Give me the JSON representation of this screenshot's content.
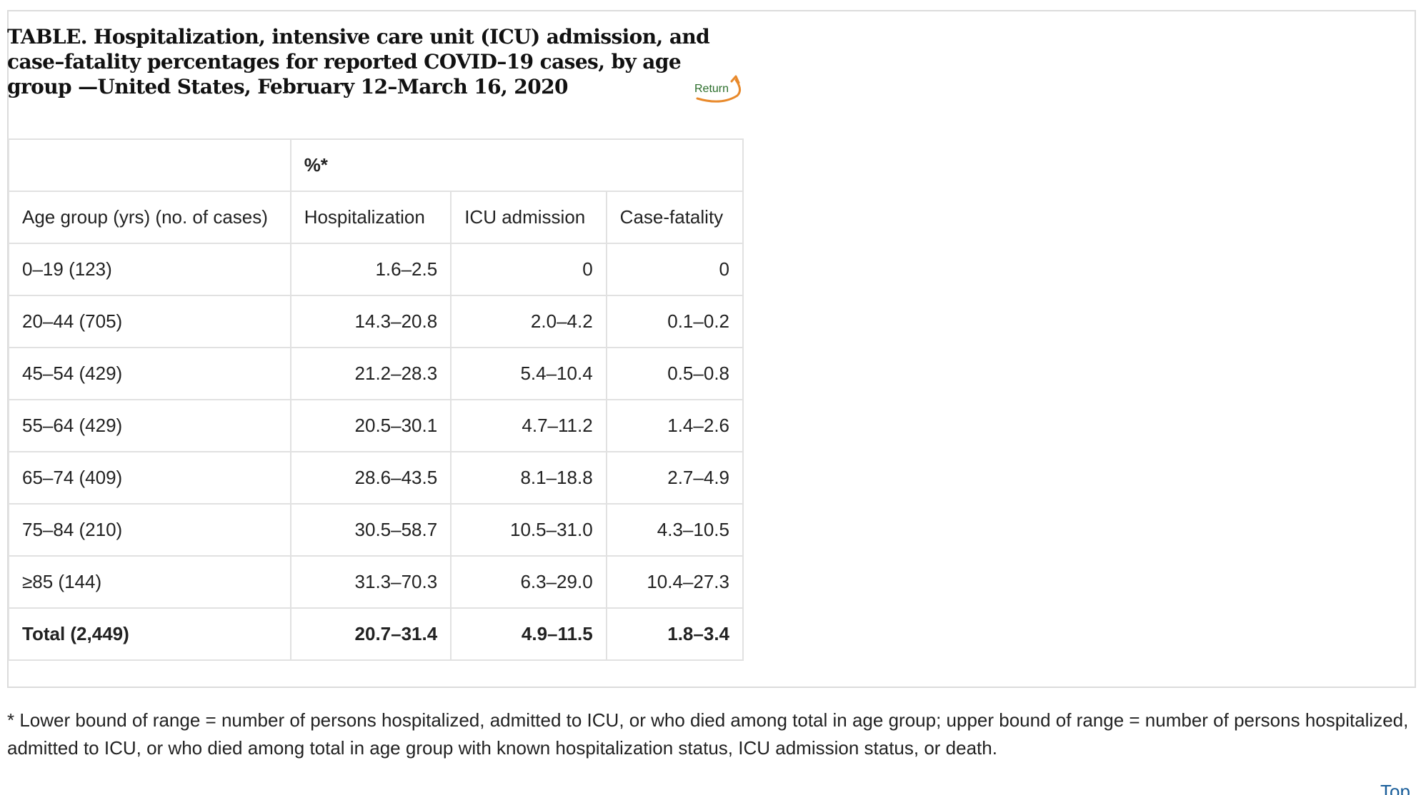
{
  "caption": "TABLE. Hospitalization, intensive care unit (ICU) admission, and case–fatality percentages for reported COVID–19 cases, by age group —United States, February 12–March 16, 2020",
  "return_label": "Return",
  "table": {
    "group_header": "%*",
    "columns": [
      "Age group (yrs) (no. of cases)",
      "Hospitalization",
      "ICU admission",
      "Case-fatality"
    ],
    "rows": [
      [
        "0–19 (123)",
        "1.6–2.5",
        "0",
        "0"
      ],
      [
        "20–44 (705)",
        "14.3–20.8",
        "2.0–4.2",
        "0.1–0.2"
      ],
      [
        "45–54 (429)",
        "21.2–28.3",
        "5.4–10.4",
        "0.5–0.8"
      ],
      [
        "55–64 (429)",
        "20.5–30.1",
        "4.7–11.2",
        "1.4–2.6"
      ],
      [
        "65–74 (409)",
        "28.6–43.5",
        "8.1–18.8",
        "2.7–4.9"
      ],
      [
        "75–84 (210)",
        "30.5–58.7",
        "10.5–31.0",
        "4.3–10.5"
      ],
      [
        "≥85 (144)",
        "31.3–70.3",
        "6.3–29.0",
        "10.4–27.3"
      ]
    ],
    "total": [
      "Total (2,449)",
      "20.7–31.4",
      "4.9–11.5",
      "1.8–3.4"
    ]
  },
  "footnote": "* Lower bound of range = number of persons hospitalized, admitted to ICU, or who died among total in age group; upper bound of range = number of persons hospitalized, admitted to ICU, or who died among total in age group with known hospitalization status, ICU admission status, or death.",
  "top_label": "Top",
  "colors": {
    "return_text": "#2b6e2b",
    "return_arrow": "#e8892b",
    "border": "#e1e1e1",
    "link": "#1a5e9a"
  }
}
